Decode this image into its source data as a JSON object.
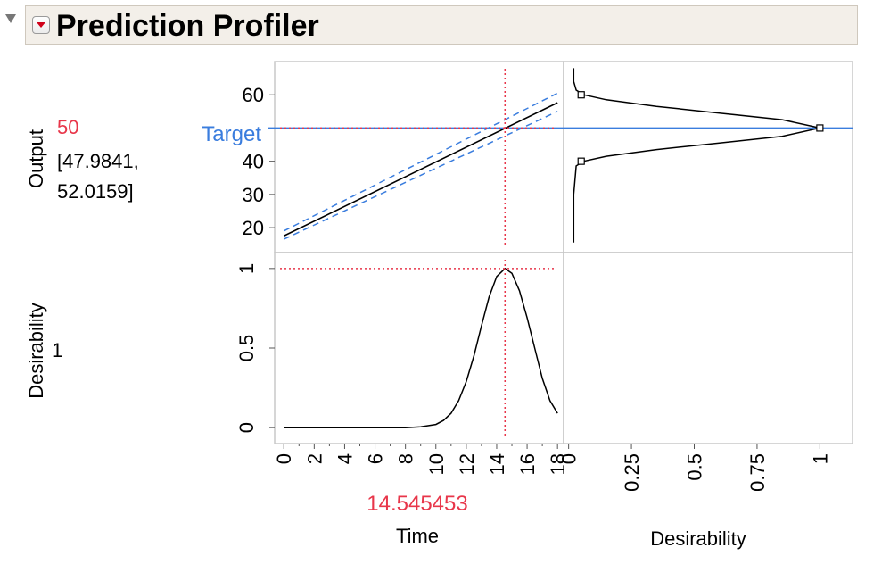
{
  "profiler": {
    "title": "Prediction Profiler"
  },
  "colors": {
    "current_value": "#e8364a",
    "target": "#3a7dde",
    "curve": "#000000",
    "ci": "#3a7dde",
    "grid": "#c8c8c8"
  },
  "chart_data": {
    "type": "line",
    "factor": {
      "name": "Time",
      "current": 14.545453,
      "current_label": "14.545453",
      "range": [
        -0.6,
        18.4
      ],
      "ticks": [
        0,
        2,
        4,
        6,
        8,
        10,
        12,
        14,
        16,
        18
      ],
      "tick_labels": [
        "0",
        "2",
        "4",
        "6",
        "8",
        "10",
        "12",
        "14",
        "16",
        "18"
      ]
    },
    "responses": [
      {
        "name": "Output",
        "current_value": "50",
        "ci_lines": [
          "[47.9841,",
          "52.0159]"
        ],
        "target_label": "Target",
        "target": 50,
        "ylim": [
          12.5,
          70
        ],
        "ticks": [
          20,
          30,
          40,
          50,
          60
        ],
        "tick_labels": [
          "20",
          "30",
          "40",
          "50",
          "60"
        ],
        "prediction": {
          "x": [
            0,
            18
          ],
          "y": [
            17.5,
            57.6
          ]
        },
        "ci_upper": {
          "x": [
            0,
            18
          ],
          "y": [
            19.0,
            60.5
          ]
        },
        "ci_lower": {
          "x": [
            0,
            18
          ],
          "y": [
            16.5,
            55.0
          ]
        }
      }
    ],
    "desirability": {
      "name": "Desirability",
      "current_value": "1",
      "ylim": [
        -0.1,
        1.1
      ],
      "ticks": [
        0,
        0.5,
        1
      ],
      "tick_labels": [
        "0",
        "0.5",
        "1"
      ],
      "curve": {
        "x": [
          0,
          8,
          9,
          10,
          10.5,
          11,
          11.5,
          12,
          12.5,
          13,
          13.5,
          14,
          14.545,
          15,
          15.5,
          16,
          16.5,
          17,
          17.5,
          18
        ],
        "y": [
          0,
          0,
          0.005,
          0.02,
          0.045,
          0.09,
          0.17,
          0.29,
          0.45,
          0.64,
          0.82,
          0.95,
          1.0,
          0.97,
          0.86,
          0.69,
          0.5,
          0.31,
          0.17,
          0.09
        ]
      },
      "function": {
        "ticks": [
          0,
          0.25,
          0.5,
          0.75,
          1
        ],
        "tick_labels": [
          "0",
          "0.25",
          "0.5",
          "0.75",
          "1"
        ],
        "xlim": [
          -0.02,
          1.13
        ],
        "curve": {
          "d": [
            0.02,
            0.02,
            0.03,
            0.06,
            0.15,
            0.35,
            0.6,
            0.85,
            1.0,
            0.85,
            0.6,
            0.35,
            0.15,
            0.06,
            0.03,
            0.02,
            0.02
          ],
          "y": [
            15.5,
            30,
            38.6,
            40,
            41.5,
            43.5,
            45.5,
            47.5,
            50,
            52.5,
            54.5,
            56.5,
            58.5,
            60,
            61.4,
            64,
            68
          ]
        },
        "markers": [
          {
            "d": 0.05,
            "y": 40
          },
          {
            "d": 1.0,
            "y": 50
          },
          {
            "d": 0.05,
            "y": 60
          }
        ]
      }
    }
  }
}
